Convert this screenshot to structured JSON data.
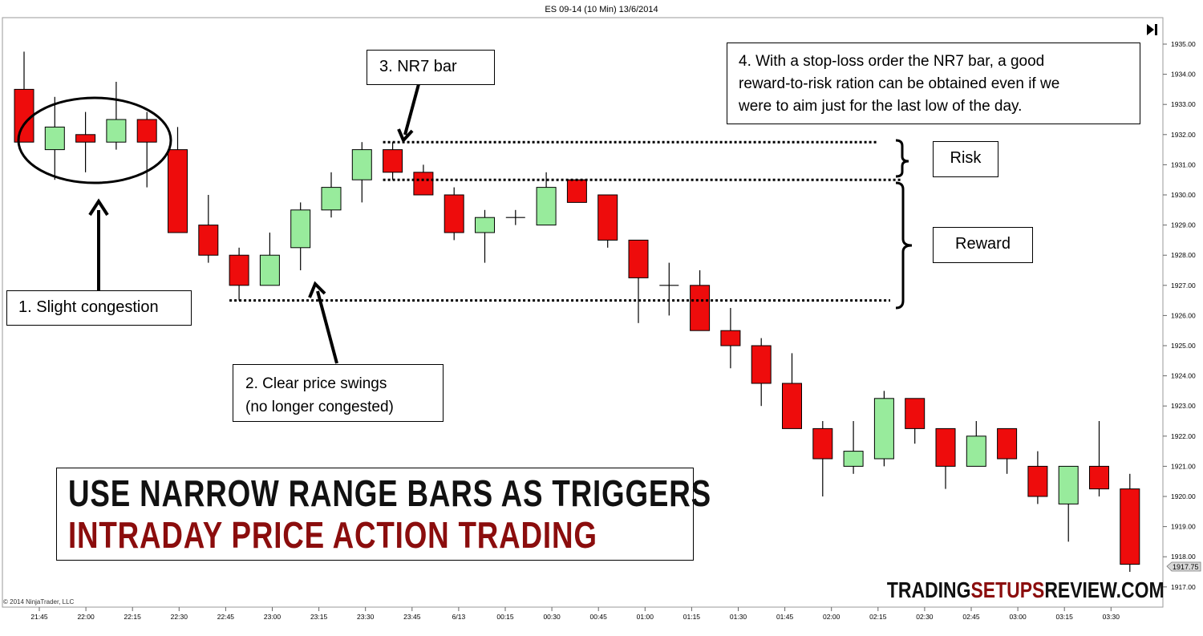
{
  "header": {
    "title": "ES 09-14 (10 Min)  13/6/2014"
  },
  "copyright": "© 2014 NinjaTrader, LLC",
  "toolbar": {
    "scroll_end_icon": "skip-to-end-icon"
  },
  "annotations": {
    "a1": "1. Slight  congestion",
    "a2_line1": "2. Clear price swings",
    "a2_line2": "(no longer congested)",
    "a3": "3. NR7 bar",
    "a4_line1": "4. With a stop-loss order the NR7 bar, a good",
    "a4_line2": "reward-to-risk ration can be obtained even if we",
    "a4_line3": "were to aim just for the last low of the day.",
    "risk": "Risk",
    "reward": "Reward"
  },
  "title": {
    "line1": "USE NARROW RANGE BARS AS TRIGGERS",
    "line2": "INTRADAY PRICE ACTION TRADING",
    "line1_color": "#111111",
    "line2_color": "#8b0d0d"
  },
  "brand": {
    "part1": "TRADING",
    "part2": "SETUPS",
    "part3": "REVIEW.COM",
    "part1_color": "#111111",
    "part2_color": "#8b0d0d",
    "part3_color": "#111111"
  },
  "chart_data": {
    "type": "candlestick",
    "title": "ES 09-14 (10 Min)  13/6/2014",
    "up_color": "#98eb9c",
    "down_color": "#ee0c0c",
    "ylim": [
      1916.75,
      1935.5
    ],
    "yticks": [
      "1935.00",
      "1934.00",
      "1933.00",
      "1932.00",
      "1931.00",
      "1930.00",
      "1929.00",
      "1928.00",
      "1927.00",
      "1926.00",
      "1925.00",
      "1924.00",
      "1923.00",
      "1922.00",
      "1921.00",
      "1920.00",
      "1919.00",
      "1918.00",
      "1917.00"
    ],
    "last_price": "1917.75",
    "xticks": [
      "21:45",
      "22:00",
      "22:15",
      "22:30",
      "22:45",
      "23:00",
      "23:15",
      "23:30",
      "23:45",
      "6/13",
      "00:15",
      "00:30",
      "00:45",
      "01:00",
      "01:15",
      "01:30",
      "01:45",
      "02:00",
      "02:15",
      "02:30",
      "02:45",
      "03:00",
      "03:15",
      "03:30"
    ],
    "candles": [
      {
        "o": 1933.5,
        "h": 1934.75,
        "l": 1931.75,
        "c": 1931.75
      },
      {
        "o": 1931.5,
        "h": 1933.25,
        "l": 1930.5,
        "c": 1932.25
      },
      {
        "o": 1932.0,
        "h": 1932.75,
        "l": 1930.75,
        "c": 1931.75
      },
      {
        "o": 1931.75,
        "h": 1933.75,
        "l": 1931.5,
        "c": 1932.5
      },
      {
        "o": 1932.5,
        "h": 1932.75,
        "l": 1930.25,
        "c": 1931.75
      },
      {
        "o": 1931.5,
        "h": 1932.25,
        "l": 1928.75,
        "c": 1928.75
      },
      {
        "o": 1929.0,
        "h": 1930.0,
        "l": 1927.75,
        "c": 1928.0
      },
      {
        "o": 1928.0,
        "h": 1928.25,
        "l": 1926.5,
        "c": 1927.0
      },
      {
        "o": 1927.0,
        "h": 1928.75,
        "l": 1927.0,
        "c": 1928.0
      },
      {
        "o": 1928.25,
        "h": 1929.75,
        "l": 1927.5,
        "c": 1929.5
      },
      {
        "o": 1929.5,
        "h": 1930.75,
        "l": 1929.25,
        "c": 1930.25
      },
      {
        "o": 1930.5,
        "h": 1931.75,
        "l": 1929.75,
        "c": 1931.5
      },
      {
        "o": 1931.5,
        "h": 1931.75,
        "l": 1930.5,
        "c": 1930.75
      },
      {
        "o": 1930.75,
        "h": 1931.0,
        "l": 1930.0,
        "c": 1930.0
      },
      {
        "o": 1930.0,
        "h": 1930.25,
        "l": 1928.5,
        "c": 1928.75
      },
      {
        "o": 1928.75,
        "h": 1929.5,
        "l": 1927.75,
        "c": 1929.25
      },
      {
        "o": 1929.25,
        "h": 1929.5,
        "l": 1929.0,
        "c": 1929.25
      },
      {
        "o": 1929.0,
        "h": 1930.75,
        "l": 1929.0,
        "c": 1930.25
      },
      {
        "o": 1930.5,
        "h": 1930.5,
        "l": 1929.75,
        "c": 1929.75
      },
      {
        "o": 1930.0,
        "h": 1930.0,
        "l": 1928.25,
        "c": 1928.5
      },
      {
        "o": 1928.5,
        "h": 1928.5,
        "l": 1925.75,
        "c": 1927.25
      },
      {
        "o": 1927.0,
        "h": 1927.75,
        "l": 1926.0,
        "c": 1927.0
      },
      {
        "o": 1927.0,
        "h": 1927.5,
        "l": 1925.5,
        "c": 1925.5
      },
      {
        "o": 1925.5,
        "h": 1926.25,
        "l": 1924.25,
        "c": 1925.0
      },
      {
        "o": 1925.0,
        "h": 1925.25,
        "l": 1923.0,
        "c": 1923.75
      },
      {
        "o": 1923.75,
        "h": 1924.75,
        "l": 1922.25,
        "c": 1922.25
      },
      {
        "o": 1922.25,
        "h": 1922.5,
        "l": 1920.0,
        "c": 1921.25
      },
      {
        "o": 1921.0,
        "h": 1922.5,
        "l": 1920.75,
        "c": 1921.5
      },
      {
        "o": 1921.25,
        "h": 1923.5,
        "l": 1921.0,
        "c": 1923.25
      },
      {
        "o": 1923.25,
        "h": 1923.25,
        "l": 1921.75,
        "c": 1922.25
      },
      {
        "o": 1922.25,
        "h": 1922.25,
        "l": 1920.25,
        "c": 1921.0
      },
      {
        "o": 1921.0,
        "h": 1922.5,
        "l": 1921.0,
        "c": 1922.0
      },
      {
        "o": 1922.25,
        "h": 1922.25,
        "l": 1920.75,
        "c": 1921.25
      },
      {
        "o": 1921.0,
        "h": 1921.5,
        "l": 1919.75,
        "c": 1920.0
      },
      {
        "o": 1919.75,
        "h": 1921.0,
        "l": 1918.5,
        "c": 1921.0
      },
      {
        "o": 1921.0,
        "h": 1922.5,
        "l": 1920.0,
        "c": 1920.25
      },
      {
        "o": 1920.25,
        "h": 1920.75,
        "l": 1917.5,
        "c": 1917.75
      }
    ],
    "levels": {
      "nr7_high": 1931.75,
      "nr7_low": 1930.5,
      "swing_low": 1926.5
    }
  }
}
